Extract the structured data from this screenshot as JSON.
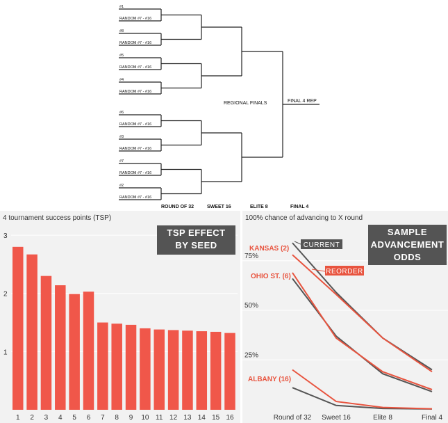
{
  "bracket": {
    "seed_labels": [
      "#1",
      "#8",
      "#5",
      "#4",
      "#6",
      "#3",
      "#7",
      "#2"
    ],
    "opponent_label": "RANDOM #7 - #16",
    "regional_finals_label": "REGIONAL FINALS",
    "final4_rep_label": "FINAL 4 REP",
    "round_labels": [
      "ROUND OF 32",
      "SWEET 16",
      "ELITE 8",
      "FINAL 4"
    ]
  },
  "chart_data": [
    {
      "type": "bar",
      "title": "TSP EFFECT BY SEED",
      "title_lines": [
        "TSP EFFECT",
        "BY SEED"
      ],
      "ylabel": "4 tournament success points (TSP)",
      "categories": [
        "1",
        "2",
        "3",
        "4",
        "5",
        "6",
        "7",
        "8",
        "9",
        "10",
        "11",
        "12",
        "13",
        "14",
        "15",
        "16"
      ],
      "values": [
        2.8,
        2.67,
        2.3,
        2.14,
        1.99,
        2.03,
        1.5,
        1.48,
        1.46,
        1.4,
        1.38,
        1.37,
        1.36,
        1.35,
        1.34,
        1.32
      ],
      "yticks": [
        "1",
        "2",
        "3"
      ],
      "ylim": [
        0,
        3.3
      ],
      "grid": true,
      "color": "#f0574a"
    },
    {
      "type": "line",
      "title": "SAMPLE ADVANCEMENT ODDS",
      "title_lines": [
        "SAMPLE",
        "ADVANCEMENT",
        "ODDS"
      ],
      "ylabel": "100% chance of advancing to X round",
      "categories": [
        "Round of 32",
        "Sweet 16",
        "Elite 8",
        "Final 4"
      ],
      "yticks": [
        "25%",
        "50%",
        "75%"
      ],
      "ylim": [
        0,
        100
      ],
      "legend": {
        "current": "CURRENT",
        "reorder": "REORDER"
      },
      "colors": {
        "current": "#555555",
        "reorder": "#e8543f"
      },
      "series": [
        {
          "name": "KANSAS (2)",
          "current": [
            84,
            59,
            36,
            20
          ],
          "reorder": [
            78,
            58,
            36,
            19
          ]
        },
        {
          "name": "OHIO ST. (6)",
          "current": [
            66,
            37,
            18,
            9
          ],
          "reorder": [
            69,
            36,
            19,
            10
          ]
        },
        {
          "name": "ALBANY (16)",
          "current": [
            11,
            2,
            0.5,
            0.2
          ],
          "reorder": [
            20,
            4,
            1,
            0.3
          ]
        }
      ]
    }
  ]
}
